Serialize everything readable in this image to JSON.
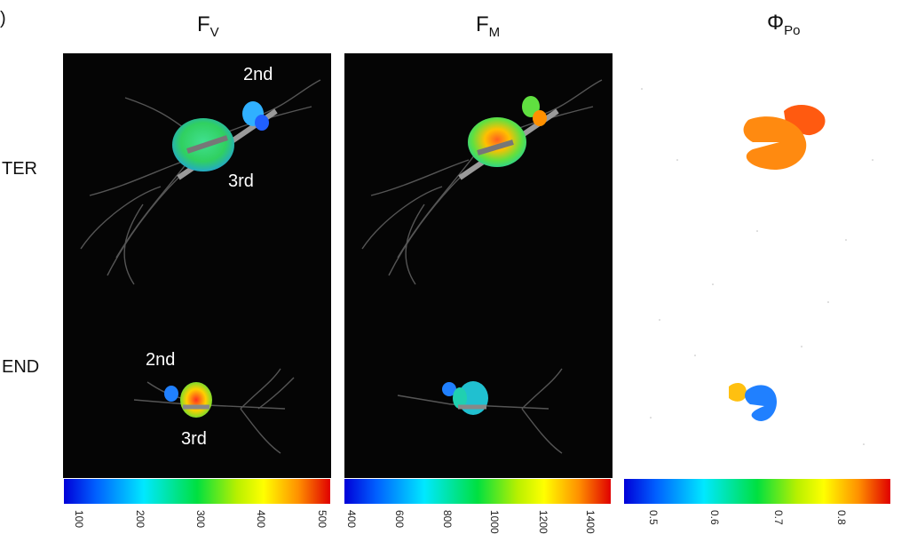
{
  "figure_letter": ")",
  "rows": [
    "TER",
    "END"
  ],
  "panels": [
    {
      "title_main": "F",
      "title_sub": "V",
      "labels": [
        "2nd",
        "3rd",
        "2nd",
        "3rd"
      ],
      "colorbar": {
        "ticks": [
          "100",
          "200",
          "300",
          "400",
          "500"
        ],
        "min": 100,
        "max": 500
      }
    },
    {
      "title_main": "F",
      "title_sub": "M",
      "colorbar": {
        "ticks": [
          "400",
          "600",
          "800",
          "1000",
          "1200",
          "1400"
        ],
        "min": 400,
        "max": 1400
      }
    },
    {
      "title_main": "Φ",
      "title_sub": "Po",
      "colorbar": {
        "ticks": [
          "0.5",
          "0.6",
          "0.7",
          "0.8"
        ],
        "min": 0.45,
        "max": 0.88
      }
    }
  ],
  "colors": {
    "dark_background": "#050505",
    "light_background": "#ffffff"
  }
}
